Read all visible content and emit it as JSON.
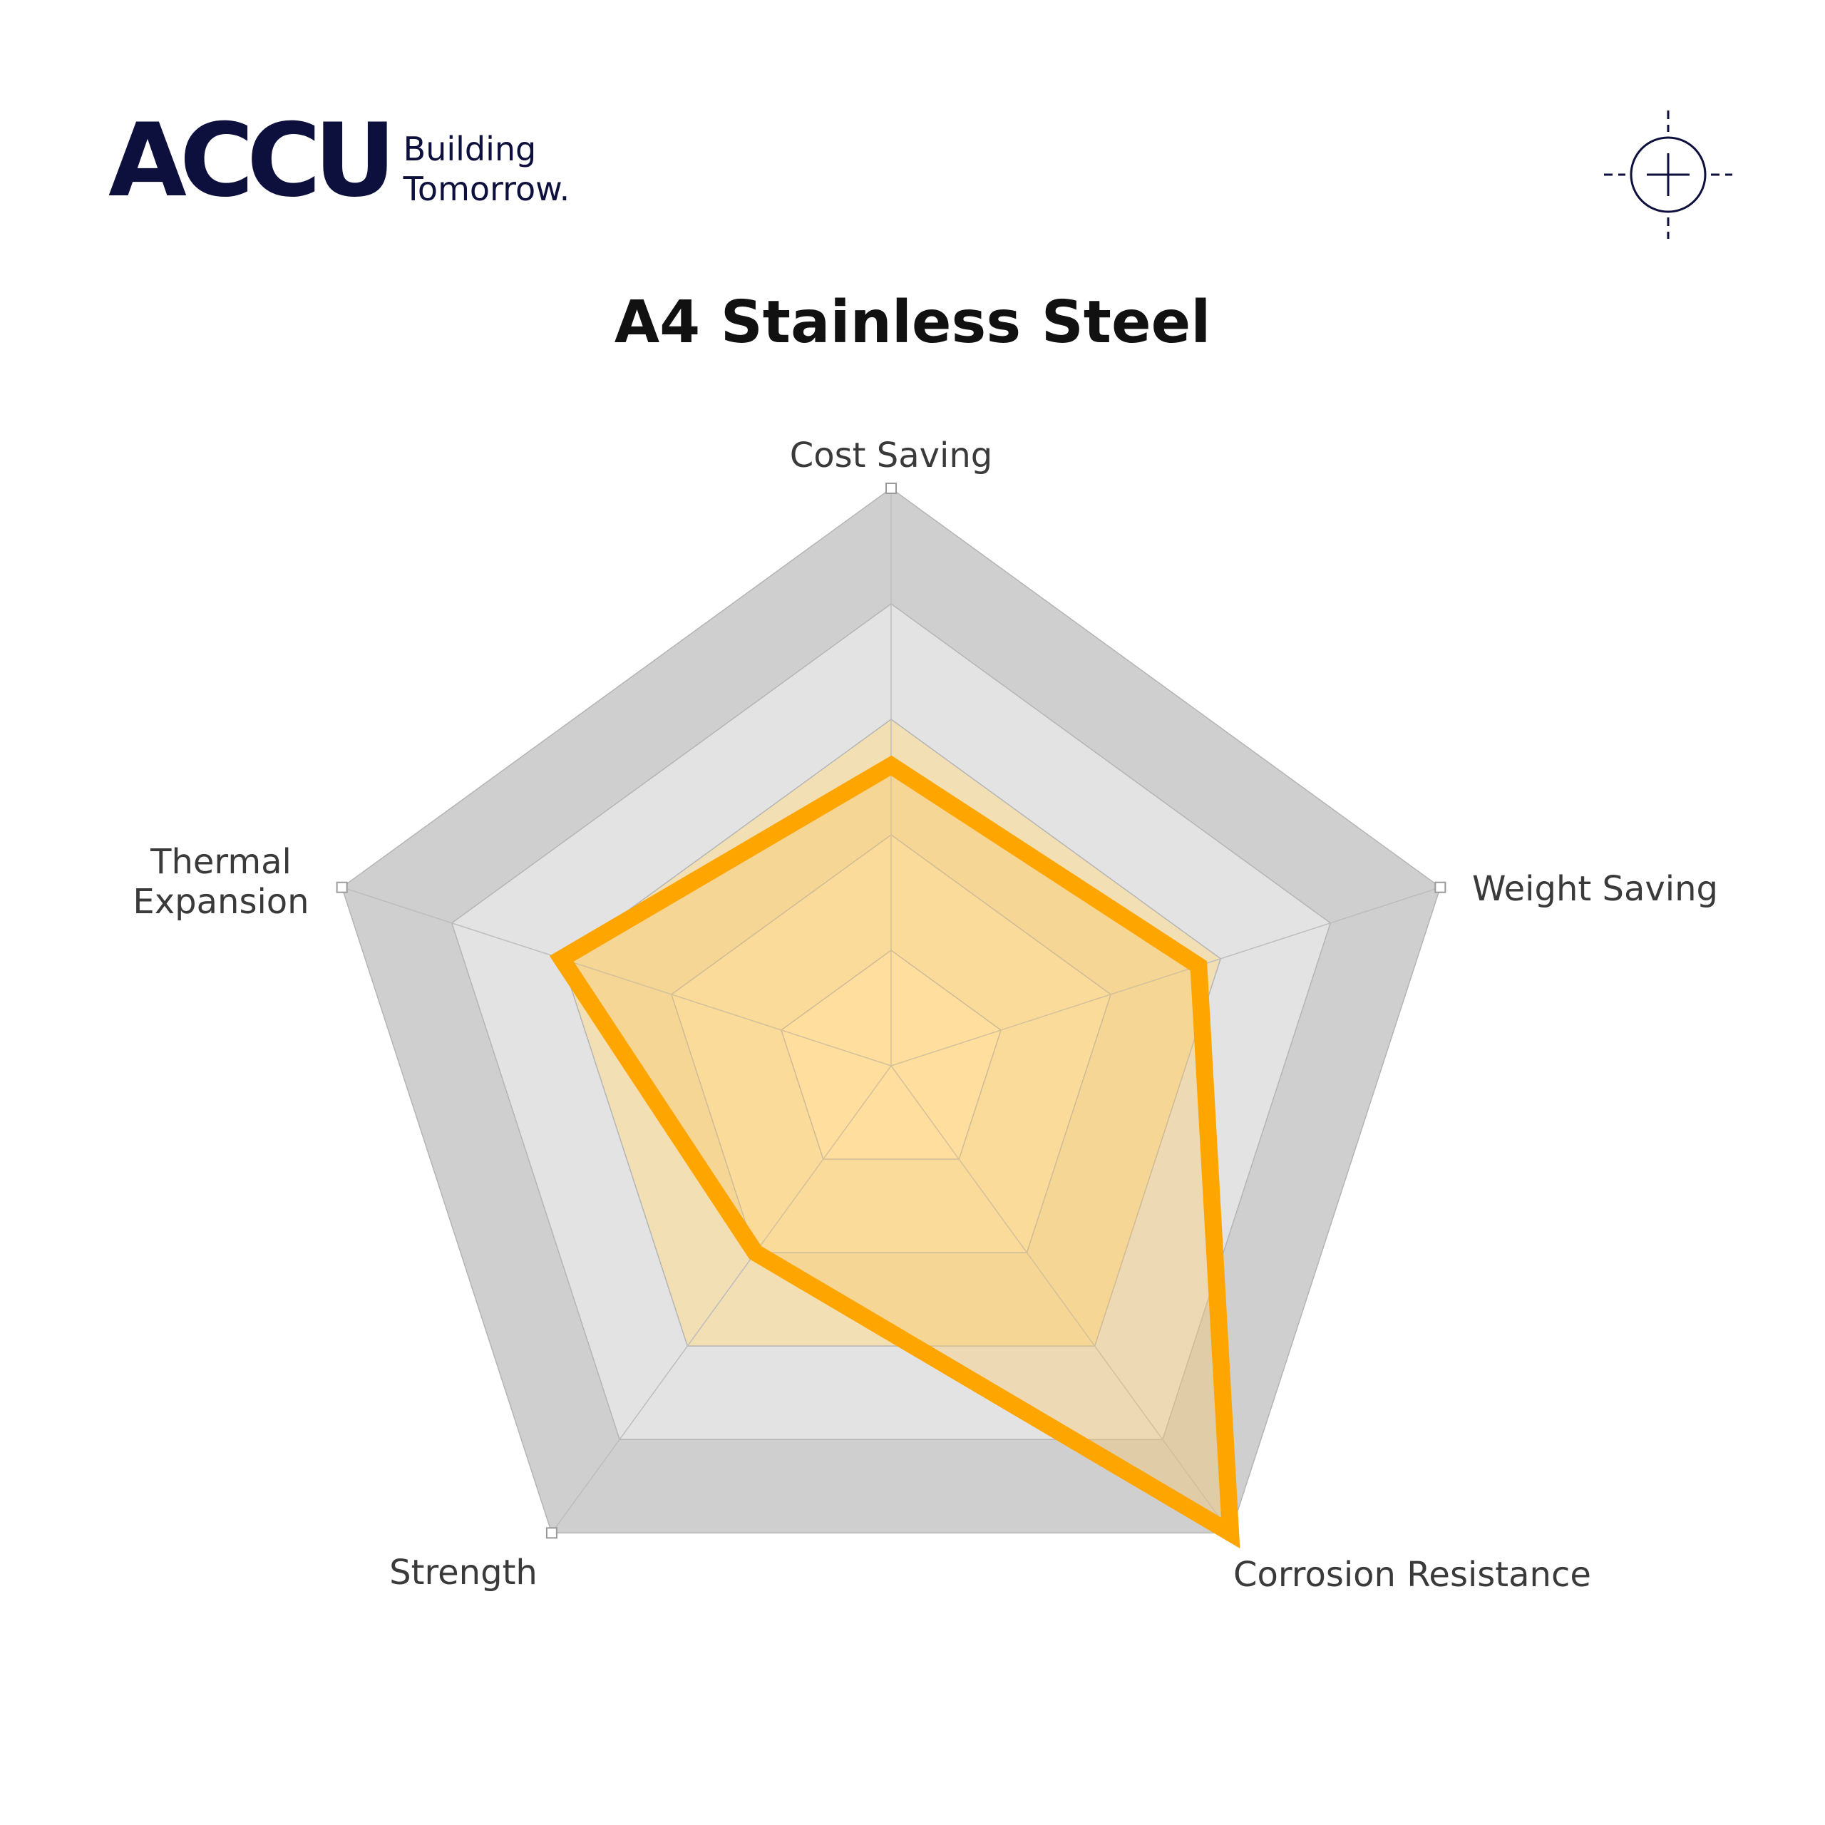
{
  "brand": {
    "name": "ACCU",
    "tagline_line1": "Building",
    "tagline_line2": "Tomorrow."
  },
  "chart_data": {
    "type": "radar",
    "title": "A4 Stainless Steel",
    "axes": [
      "Cost Saving",
      "Weight Saving",
      "Corrosion Resistance",
      "Strength",
      "Thermal Expansion"
    ],
    "values": [
      2.6,
      2.8,
      5.0,
      2.0,
      3.0
    ],
    "rmax": 5,
    "levels": 5,
    "colors": {
      "series": "#FFA500",
      "fill": "#FFC55A",
      "grid_outer": "#cfcfcf",
      "grid_inner": "#e6e6e6",
      "center": "#ffecc4"
    }
  }
}
